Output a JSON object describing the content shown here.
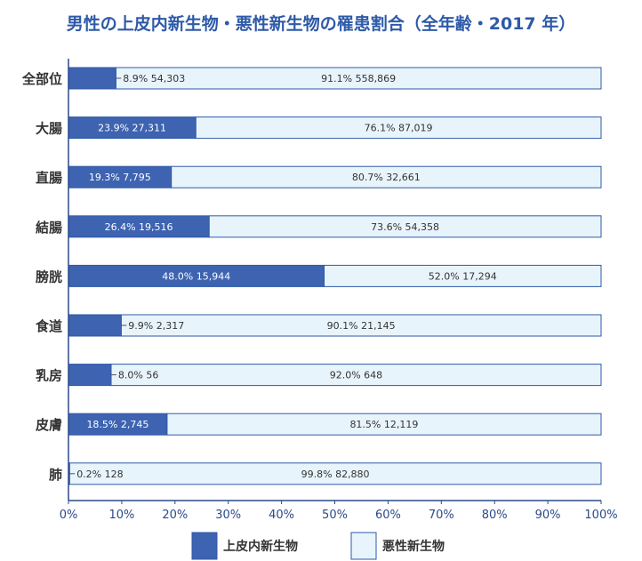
{
  "chart_data": {
    "type": "bar",
    "orientation": "horizontal",
    "stacked": true,
    "percent_stacked": true,
    "title": "男性の上皮内新生物・悪性新生物の罹患割合（全年齢・2017 年）",
    "categories": [
      "全部位",
      "大腸",
      "直腸",
      "結腸",
      "膀胱",
      "食道",
      "乳房",
      "皮膚",
      "肺"
    ],
    "series": [
      {
        "name": "上皮内新生物",
        "color": "#3d63b1",
        "values": [
          8.9,
          23.9,
          19.3,
          26.4,
          48.0,
          9.9,
          8.0,
          18.5,
          0.2
        ],
        "labels": [
          "8.9%  54,303",
          "23.9%  27,311",
          "19.3%  7,795",
          "26.4% 19,516",
          "48.0% 15,944",
          "9.9%  2,317",
          "8.0%  56",
          "18.5%  2,745",
          "0.2%  128"
        ]
      },
      {
        "name": "悪性新生物",
        "color": "#e8f4fb",
        "values": [
          91.1,
          76.1,
          80.7,
          73.6,
          52.0,
          90.1,
          92.0,
          81.5,
          99.8
        ],
        "labels": [
          "91.1% 558,869",
          "76.1% 87,019",
          "80.7% 32,661",
          "73.6%  54,358",
          "52.0% 17,294",
          "90.1%  21,145",
          "92.0% 648",
          "81.5%  12,119",
          "99.8% 82,880"
        ]
      }
    ],
    "xlim": [
      0,
      100
    ],
    "x_ticks": [
      "0%",
      "10%",
      "20%",
      "30%",
      "40%",
      "50%",
      "60%",
      "70%",
      "80%",
      "90%",
      "100%"
    ],
    "grid": false,
    "legend_position": "bottom",
    "colors": {
      "title": "#2e5aa8",
      "axis": "#2b4a8a",
      "text": "#333333",
      "bar_edge": "#2e5aa8"
    }
  }
}
